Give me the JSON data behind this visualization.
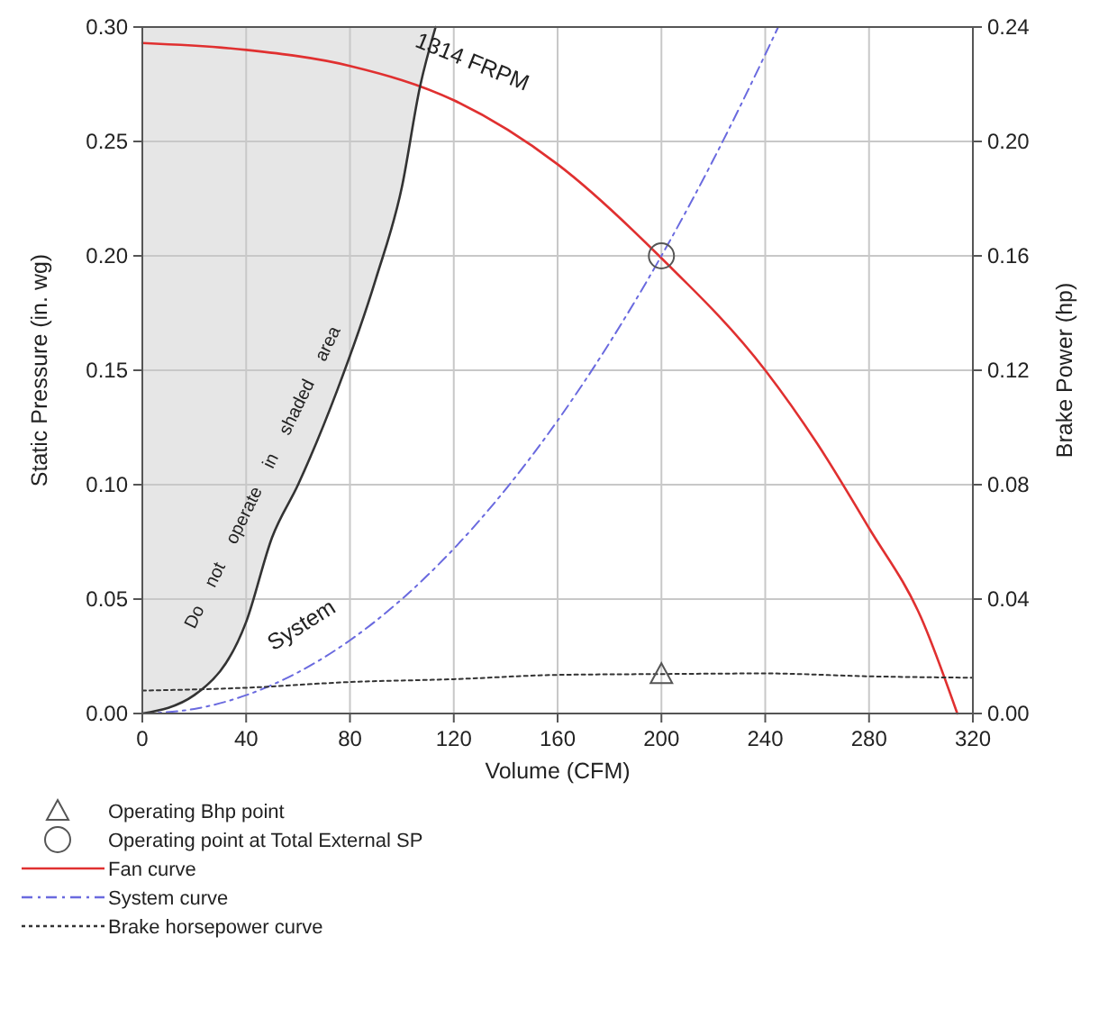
{
  "chart_data": {
    "type": "line",
    "xlabel": "Volume (CFM)",
    "ylabel": "Static Pressure (in. wg)",
    "y2label": "Brake Power (hp)",
    "xlim": [
      0,
      320
    ],
    "xticks": [
      0,
      40,
      80,
      120,
      160,
      200,
      240,
      280,
      320
    ],
    "ylim": [
      0,
      0.3
    ],
    "yticks": [
      {
        "value": 0,
        "label": "0.00"
      },
      {
        "value": 0.05,
        "label": "0.05"
      },
      {
        "value": 0.1,
        "label": "0.10"
      },
      {
        "value": 0.15,
        "label": "0.15"
      },
      {
        "value": 0.2,
        "label": "0.20"
      },
      {
        "value": 0.25,
        "label": "0.25"
      },
      {
        "value": 0.3,
        "label": "0.30"
      }
    ],
    "y2lim": [
      0,
      0.24
    ],
    "y2ticks": [
      {
        "value": 0,
        "label": "0.00"
      },
      {
        "value": 0.04,
        "label": "0.04"
      },
      {
        "value": 0.08,
        "label": "0.08"
      },
      {
        "value": 0.12,
        "label": "0.12"
      },
      {
        "value": 0.16,
        "label": "0.16"
      },
      {
        "value": 0.2,
        "label": "0.20"
      },
      {
        "value": 0.24,
        "label": "0.24"
      }
    ],
    "grid": true,
    "legend": "bottom left",
    "series": [
      {
        "name": "Operating Bhp point",
        "type": "scatter",
        "marker": "triangle",
        "axis": "y2",
        "color": "#555555",
        "x": [
          200
        ],
        "values": [
          0.0138
        ]
      },
      {
        "name": "Operating point at Total External SP",
        "type": "scatter",
        "marker": "circle",
        "color": "#555555",
        "x": [
          200
        ],
        "values": [
          0.2
        ]
      },
      {
        "name": "Fan curve",
        "color": "#e03030",
        "line_style": "solid",
        "x": [
          0,
          40,
          80,
          120,
          160,
          200,
          240,
          260,
          280,
          300,
          314
        ],
        "values": [
          0.293,
          0.29,
          0.283,
          0.268,
          0.24,
          0.199,
          0.15,
          0.118,
          0.081,
          0.042,
          0
        ]
      },
      {
        "name": "System curve",
        "color": "#6a6adf",
        "line_style": "dashed",
        "x": [
          0,
          20,
          40,
          60,
          80,
          100,
          120,
          140,
          160,
          180,
          200,
          220,
          240,
          245
        ],
        "values": [
          0,
          0.002,
          0.008,
          0.018,
          0.032,
          0.05,
          0.072,
          0.098,
          0.128,
          0.162,
          0.2,
          0.242,
          0.288,
          0.3
        ]
      },
      {
        "name": "Brake horsepower curve",
        "type": "line",
        "color": "#333333",
        "line_style": "dotted",
        "axis": "y2",
        "x": [
          0,
          40,
          80,
          120,
          160,
          200,
          240,
          280,
          320
        ],
        "values": [
          0.008,
          0.009,
          0.011,
          0.012,
          0.0135,
          0.0138,
          0.014,
          0.013,
          0.0125
        ]
      },
      {
        "type": "line",
        "line_style": "solid",
        "color": "#333333",
        "x": [
          0,
          20,
          40,
          50,
          60,
          75,
          90,
          100,
          107,
          113
        ],
        "values": [
          0,
          0.008,
          0.04,
          0.077,
          0.1,
          0.141,
          0.19,
          0.23,
          0.274,
          0.3
        ]
      }
    ],
    "annotations": [
      "1314 FRPM",
      "System",
      "Do not operate in shaded area"
    ]
  }
}
